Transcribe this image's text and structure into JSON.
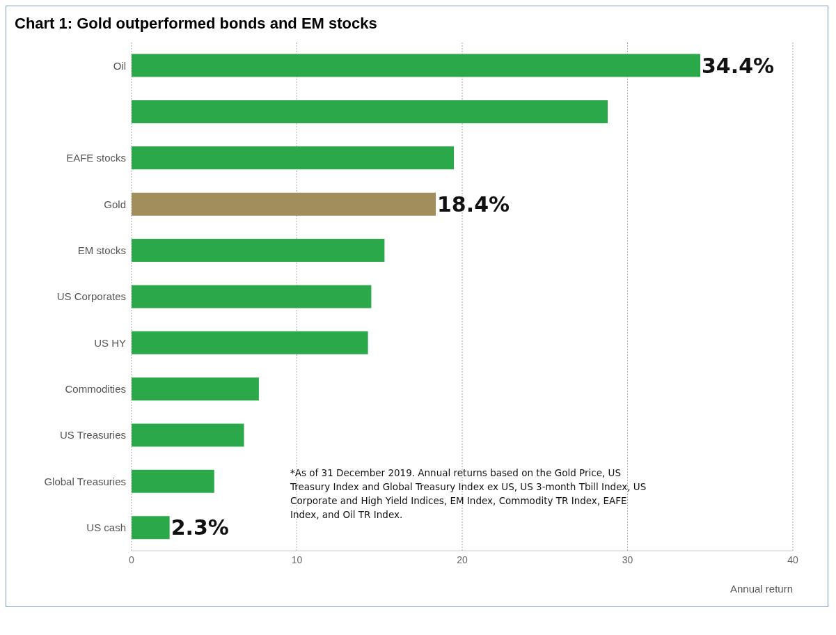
{
  "chart_data": {
    "type": "bar",
    "orientation": "horizontal",
    "title": "Chart 1: Gold outperformed bonds and EM stocks",
    "xlabel": "Annual return",
    "categories": [
      "Oil",
      null,
      "EAFE stocks",
      "Gold",
      "EM stocks",
      "US Corporates",
      "US HY",
      "Commodities",
      "US Treasuries",
      "Global Treasuries",
      "US cash"
    ],
    "values": [
      34.4,
      28.8,
      19.5,
      18.4,
      15.3,
      14.5,
      14.3,
      7.7,
      6.8,
      5.0,
      2.3
    ],
    "colors": [
      "#2ba84a",
      "#2ba84a",
      "#2ba84a",
      "#a28d5c",
      "#2ba84a",
      "#2ba84a",
      "#2ba84a",
      "#2ba84a",
      "#2ba84a",
      "#2ba84a",
      "#2ba84a"
    ],
    "value_labels": [
      "34.4%",
      null,
      null,
      "18.4%",
      null,
      null,
      null,
      null,
      null,
      null,
      "2.3%"
    ],
    "xlim": [
      0,
      40
    ],
    "xticks": [
      0,
      10,
      20,
      30,
      40
    ],
    "grid": "x",
    "annotations": [
      "*As of 31 December 2019. Annual returns based on the Gold Price, US Treasury Index and Global Treasury Index ex US, US 3-month Tbill Index, US Corporate and High Yield Indices, EM Index, Commodity TR Index, EAFE Index, and Oil TR Index."
    ]
  }
}
